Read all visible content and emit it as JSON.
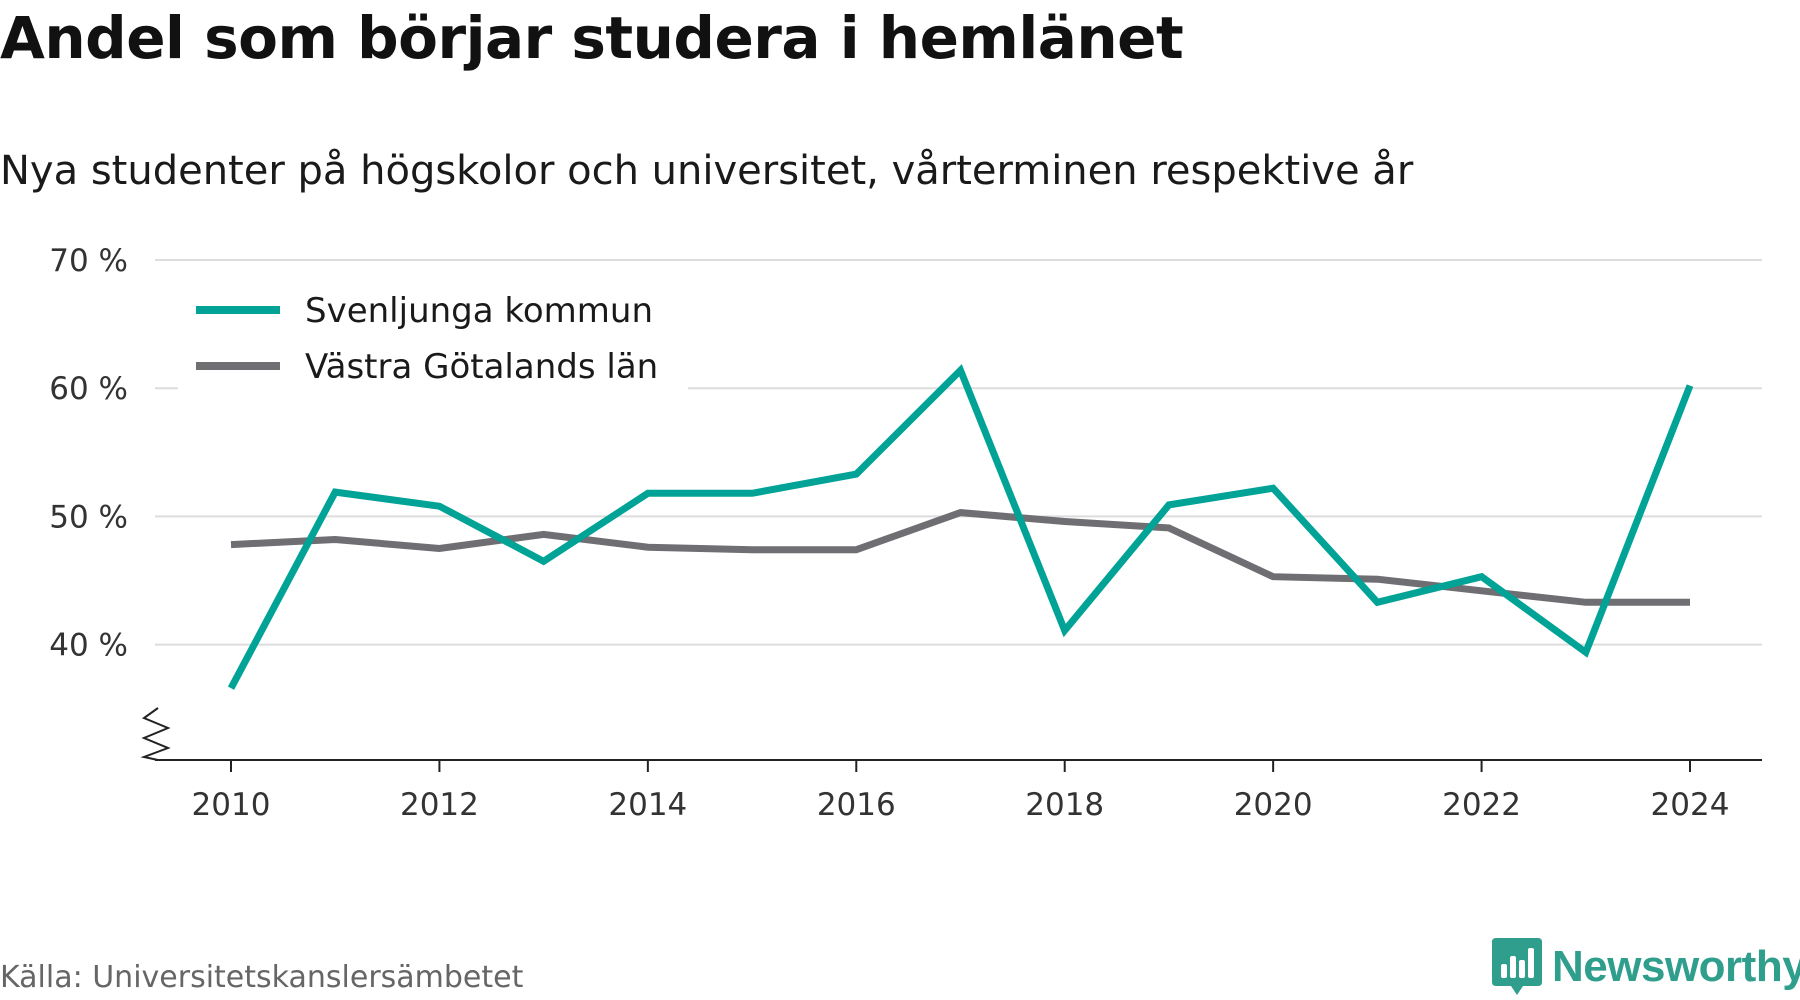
{
  "title": "Andel som börjar studera i hemlänet",
  "subtitle": "Nya studenter på högskolor och universitet, vårterminen respektive år",
  "source": "Källa: Universitetskanslersämbetet",
  "brand": "Newsworthy",
  "colors": {
    "svenljunga": "#00a396",
    "vastra_gotaland": "#6e6e73",
    "grid": "#dddddd",
    "axis": "#222222",
    "brand": "#2f9e8c"
  },
  "icons": {
    "brand_logo": "bar-chart-speech-bubble-icon",
    "axis_break": "zigzag-axis-break-icon"
  },
  "chart_data": {
    "type": "line",
    "x": [
      2010,
      2011,
      2012,
      2013,
      2014,
      2015,
      2016,
      2017,
      2018,
      2019,
      2020,
      2021,
      2022,
      2023,
      2024
    ],
    "x_ticks": [
      2010,
      2012,
      2014,
      2016,
      2018,
      2020,
      2022,
      2024
    ],
    "x_tick_labels": [
      "2010",
      "2012",
      "2014",
      "2016",
      "2018",
      "2020",
      "2022",
      "2024"
    ],
    "y_ticks": [
      40,
      50,
      60,
      70
    ],
    "y_tick_labels": [
      "40 %",
      "50 %",
      "60 %",
      "70 %"
    ],
    "ylim": [
      31,
      70
    ],
    "y_axis_break": true,
    "grid": true,
    "legend_position": "top-left",
    "series": [
      {
        "name": "Svenljunga kommun",
        "color": "#00a396",
        "values": [
          36.6,
          51.9,
          50.8,
          46.5,
          51.8,
          51.8,
          53.3,
          61.4,
          41.1,
          50.9,
          52.2,
          43.3,
          45.3,
          39.4,
          60.2
        ]
      },
      {
        "name": "Västra Götalands län",
        "color": "#6e6e73",
        "values": [
          47.8,
          48.2,
          47.5,
          48.6,
          47.6,
          47.4,
          47.4,
          50.3,
          49.6,
          49.1,
          45.3,
          45.1,
          44.2,
          43.3,
          43.3
        ]
      }
    ],
    "xlabel": "",
    "ylabel": ""
  }
}
